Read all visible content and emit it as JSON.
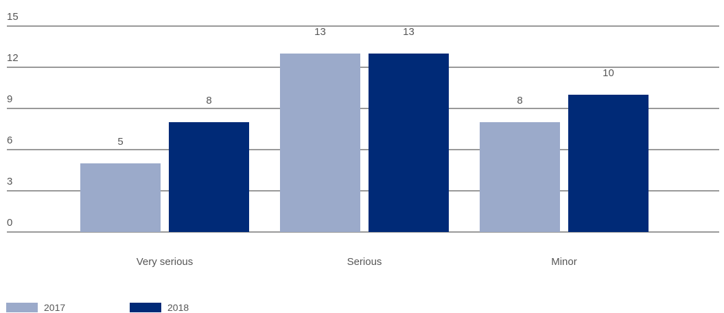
{
  "chart_data": {
    "type": "bar",
    "categories": [
      "Very serious",
      "Serious",
      "Minor"
    ],
    "series": [
      {
        "name": "2017",
        "values": [
          5,
          13,
          8
        ],
        "color": "#9BAACA"
      },
      {
        "name": "2018",
        "values": [
          8,
          13,
          10
        ],
        "color": "#002A77"
      }
    ],
    "yticks": [
      "0",
      "3",
      "6",
      "9",
      "12",
      "15"
    ],
    "ylim": [
      0,
      15
    ],
    "grid": true,
    "legend_position": "bottom-left",
    "title": "",
    "xlabel": "",
    "ylabel": ""
  }
}
